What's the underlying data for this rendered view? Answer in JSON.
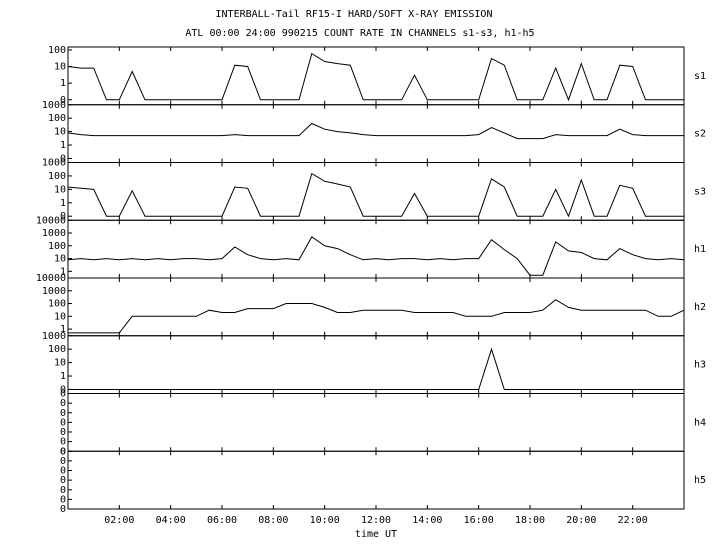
{
  "chart_data": {
    "type": "line",
    "title": "INTERBALL-Tail RF15-I HARD/SOFT X-RAY EMISSION",
    "subtitle": "ATL 00:00 24:00 990215  COUNT RATE IN CHANNELS s1-s3, h1-h5",
    "xlabel": "time UT",
    "color": "#000000",
    "xlim": [
      0,
      24
    ],
    "xticks": [
      {
        "value": 2,
        "label": "02:00"
      },
      {
        "value": 4,
        "label": "04:00"
      },
      {
        "value": 6,
        "label": "06:00"
      },
      {
        "value": 8,
        "label": "08:00"
      },
      {
        "value": 10,
        "label": "10:00"
      },
      {
        "value": 12,
        "label": "12:00"
      },
      {
        "value": 14,
        "label": "14:00"
      },
      {
        "value": 16,
        "label": "16:00"
      },
      {
        "value": 18,
        "label": "18:00"
      },
      {
        "value": 20,
        "label": "20:00"
      },
      {
        "value": 22,
        "label": "22:00"
      }
    ],
    "x": [
      0,
      0.5,
      1,
      1.5,
      2,
      2.5,
      3,
      3.5,
      4,
      4.5,
      5,
      5.5,
      6,
      6.5,
      7,
      7.5,
      8,
      8.5,
      9,
      9.5,
      10,
      10.5,
      11,
      11.5,
      12,
      12.5,
      13,
      13.5,
      14,
      14.5,
      15,
      15.5,
      16,
      16.5,
      17,
      17.5,
      18,
      18.5,
      19,
      19.5,
      20,
      20.5,
      21,
      21.5,
      22,
      22.5,
      23,
      23.5,
      24
    ],
    "panels": [
      {
        "name": "s1",
        "log_scale": true,
        "ylim": [
          0.05,
          150
        ],
        "yticks": [
          {
            "value": 0.1,
            "label": "0"
          },
          1,
          10,
          100
        ],
        "values": [
          10,
          8,
          8,
          0.1,
          0.1,
          5,
          0.1,
          0.1,
          0.1,
          0.1,
          0.1,
          0.1,
          0.1,
          12,
          10,
          0.1,
          0.1,
          0.1,
          0.1,
          60,
          20,
          15,
          12,
          0.1,
          0.1,
          0.1,
          0.1,
          3,
          0.1,
          0.1,
          0.1,
          0.1,
          0.1,
          30,
          12,
          0.1,
          0.1,
          0.1,
          8,
          0.1,
          15,
          0.1,
          0.1,
          12,
          10,
          0.1,
          0.1,
          0.1,
          0.1
        ]
      },
      {
        "name": "s2",
        "log_scale": true,
        "ylim": [
          0.05,
          1000
        ],
        "yticks": [
          {
            "value": 0.1,
            "label": "0"
          },
          1,
          10,
          100,
          1000
        ],
        "values": [
          8,
          6,
          5,
          5,
          5,
          5,
          5,
          5,
          5,
          5,
          5,
          5,
          5,
          6,
          5,
          5,
          5,
          5,
          5,
          40,
          15,
          10,
          8,
          6,
          5,
          5,
          5,
          5,
          5,
          5,
          5,
          5,
          6,
          20,
          8,
          3,
          3,
          3,
          6,
          5,
          5,
          5,
          5,
          15,
          6,
          5,
          5,
          5,
          5
        ]
      },
      {
        "name": "s3",
        "log_scale": true,
        "ylim": [
          0.05,
          1000
        ],
        "yticks": [
          {
            "value": 0.1,
            "label": "0"
          },
          1,
          10,
          100,
          1000
        ],
        "values": [
          15,
          12,
          10,
          0.1,
          0.1,
          8,
          0.1,
          0.1,
          0.1,
          0.1,
          0.1,
          0.1,
          0.1,
          15,
          12,
          0.1,
          0.1,
          0.1,
          0.1,
          150,
          40,
          25,
          15,
          0.1,
          0.1,
          0.1,
          0.1,
          5,
          0.1,
          0.1,
          0.1,
          0.1,
          0.1,
          60,
          15,
          0.1,
          0.1,
          0.1,
          10,
          0.1,
          50,
          0.1,
          0.1,
          20,
          12,
          0.1,
          0.1,
          0.1,
          0.1
        ]
      },
      {
        "name": "h1",
        "log_scale": true,
        "ylim": [
          0.3,
          10000
        ],
        "yticks": [
          1,
          10,
          100,
          1000,
          10000
        ],
        "values": [
          8,
          10,
          8,
          10,
          8,
          10,
          8,
          10,
          8,
          10,
          10,
          8,
          10,
          80,
          20,
          10,
          8,
          10,
          8,
          500,
          100,
          60,
          20,
          8,
          10,
          8,
          10,
          10,
          8,
          10,
          8,
          10,
          10,
          300,
          50,
          10,
          0.5,
          0.5,
          200,
          40,
          30,
          10,
          8,
          60,
          20,
          10,
          8,
          10,
          8
        ]
      },
      {
        "name": "h2",
        "log_scale": true,
        "ylim": [
          0.3,
          10000
        ],
        "yticks": [
          1,
          10,
          100,
          1000,
          10000
        ],
        "values": [
          0.5,
          0.5,
          0.5,
          0.5,
          0.5,
          10,
          10,
          10,
          10,
          10,
          10,
          30,
          20,
          20,
          40,
          40,
          40,
          100,
          100,
          100,
          50,
          20,
          20,
          30,
          30,
          30,
          30,
          20,
          20,
          20,
          20,
          10,
          10,
          10,
          20,
          20,
          20,
          30,
          200,
          50,
          30,
          30,
          30,
          30,
          30,
          30,
          10,
          10,
          30
        ]
      },
      {
        "name": "h3",
        "log_scale": true,
        "ylim": [
          0.05,
          1000
        ],
        "yticks": [
          {
            "value": 0.1,
            "label": "0"
          },
          1,
          10,
          100,
          1000
        ],
        "values": [
          0.1,
          0.1,
          0.1,
          0.1,
          0.1,
          0.1,
          0.1,
          0.1,
          0.1,
          0.1,
          0.1,
          0.1,
          0.1,
          0.1,
          0.1,
          0.1,
          0.1,
          0.1,
          0.1,
          0.1,
          0.1,
          0.1,
          0.1,
          0.1,
          0.1,
          0.1,
          0.1,
          0.1,
          0.1,
          0.1,
          0.1,
          0.1,
          0.1,
          100,
          0.1,
          0.1,
          0.1,
          0.1,
          0.1,
          0.1,
          0.1,
          0.1,
          0.1,
          0.1,
          0.1,
          0.1,
          0.1,
          0.1,
          0.1
        ]
      },
      {
        "name": "h4",
        "log_scale": false,
        "ylim": [
          0,
          0.48
        ],
        "yticks": [
          {
            "value": 0,
            "label": "0"
          },
          {
            "value": 0.08,
            "label": "0"
          },
          {
            "value": 0.16,
            "label": "0"
          },
          {
            "value": 0.24,
            "label": "0"
          },
          {
            "value": 0.32,
            "label": "0"
          },
          {
            "value": 0.4,
            "label": "0"
          },
          {
            "value": 0.48,
            "label": "0"
          }
        ]
      },
      {
        "name": "h5",
        "log_scale": false,
        "ylim": [
          0,
          0.48
        ],
        "yticks": [
          {
            "value": 0,
            "label": "0"
          },
          {
            "value": 0.08,
            "label": "0"
          },
          {
            "value": 0.16,
            "label": "0"
          },
          {
            "value": 0.24,
            "label": "0"
          },
          {
            "value": 0.32,
            "label": "0"
          },
          {
            "value": 0.4,
            "label": "0"
          },
          {
            "value": 0.48,
            "label": "0"
          }
        ]
      }
    ]
  }
}
